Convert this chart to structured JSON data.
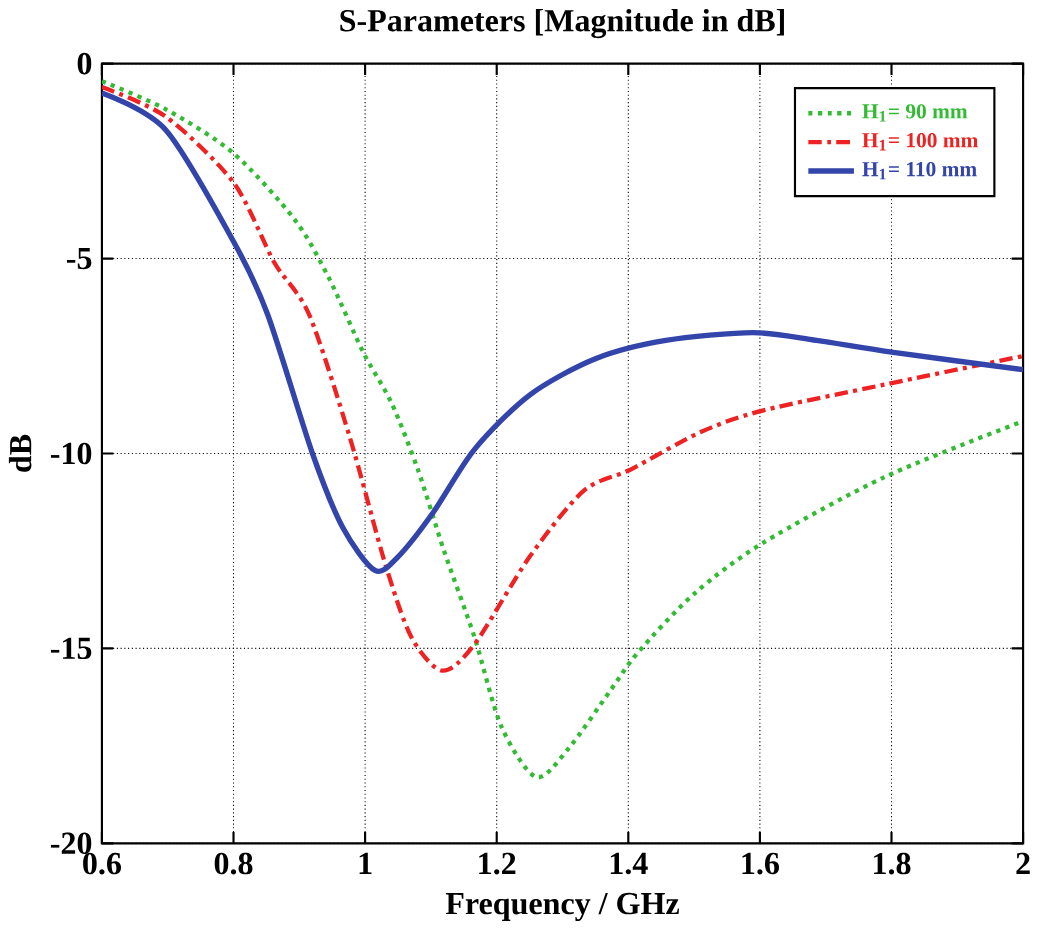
{
  "chart_data": {
    "type": "line",
    "title": "S-Parameters [Magnitude in dB]",
    "xlabel": "Frequency / GHz",
    "ylabel": "dB",
    "xlim": [
      0.6,
      2
    ],
    "xticks": [
      0.6,
      0.8,
      1,
      1.2,
      1.4,
      1.6,
      1.8,
      2
    ],
    "ylim": [
      -20,
      0
    ],
    "yticks": [
      -20,
      -15,
      -10,
      -5,
      0
    ],
    "grid": true,
    "legend": "top right",
    "marker": "none",
    "series": [
      {
        "name": "H$_{1}$= 90 mm",
        "color": "#33bb33",
        "line_style": "dotted",
        "x": [
          0.6,
          0.697,
          0.8,
          0.893,
          0.945,
          0.997,
          1.04,
          1.08,
          1.12,
          1.166,
          1.207,
          1.26,
          1.31,
          1.374,
          1.415,
          1.5,
          1.604,
          1.79,
          2.0
        ],
        "values": [
          -0.45,
          -1.17,
          -2.3,
          -4.0,
          -5.5,
          -7.4,
          -8.7,
          -10.4,
          -12.5,
          -14.7,
          -17.0,
          -18.3,
          -17.55,
          -16.05,
          -15.1,
          -13.6,
          -12.3,
          -10.6,
          -9.17
        ]
      },
      {
        "name": "H$_{1}$= 100 mm",
        "color": "#ee2222",
        "line_style": "dashdot",
        "x": [
          0.6,
          0.697,
          0.8,
          0.862,
          0.915,
          0.977,
          1.03,
          1.07,
          1.117,
          1.166,
          1.25,
          1.332,
          1.405,
          1.51,
          1.604,
          1.79,
          2.0
        ],
        "values": [
          -0.6,
          -1.36,
          -3.05,
          -5.1,
          -6.44,
          -9.6,
          -12.8,
          -14.7,
          -15.57,
          -14.9,
          -12.65,
          -10.96,
          -10.4,
          -9.45,
          -8.9,
          -8.23,
          -7.5
        ]
      },
      {
        "name": "H$_{1}$= 110 mm",
        "color": "#3344aa",
        "line_style": "solid",
        "x": [
          0.6,
          0.697,
          0.8,
          0.852,
          0.92,
          0.966,
          1.015,
          1.05,
          1.104,
          1.166,
          1.25,
          1.35,
          1.457,
          1.59,
          1.686,
          1.8,
          2.0
        ],
        "values": [
          -0.75,
          -1.7,
          -4.56,
          -6.44,
          -10.0,
          -11.9,
          -13.0,
          -12.65,
          -11.5,
          -9.9,
          -8.5,
          -7.57,
          -7.1,
          -6.9,
          -7.1,
          -7.4,
          -7.85
        ]
      }
    ]
  }
}
